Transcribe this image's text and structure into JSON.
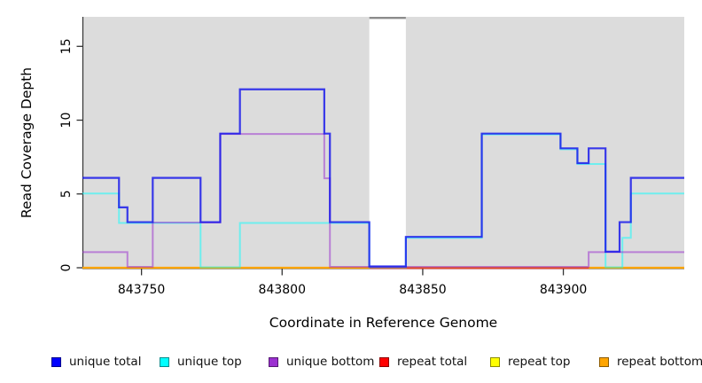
{
  "legend": {
    "items": [
      {
        "label": "unique total",
        "color": "#0000ff"
      },
      {
        "label": "unique top",
        "color": "#00ffff"
      },
      {
        "label": "unique bottom",
        "color": "#9b30d0"
      },
      {
        "label": "repeat total",
        "color": "#ff0000"
      },
      {
        "label": "repeat top",
        "color": "#ffff00"
      },
      {
        "label": "repeat bottom",
        "color": "#ffa500"
      }
    ]
  },
  "chart_data": {
    "type": "line",
    "line_style": "step",
    "title": "",
    "xlabel": "Coordinate in Reference Genome",
    "ylabel": "Read Coverage Depth",
    "xlim": [
      843729,
      843943
    ],
    "ylim": [
      0,
      17
    ],
    "x_ticks": [
      843750,
      843800,
      843850,
      843900
    ],
    "y_ticks": [
      0,
      5,
      10,
      15
    ],
    "panel_bg": "#dcdcdc",
    "axis_color": "#333333",
    "masked_region": {
      "from": 843831,
      "to": 843844,
      "fill": "#ffffff",
      "edge": "#8c8c8c"
    },
    "series": [
      {
        "name": "unique total",
        "legend_color": "#0000ff",
        "stroke": "rgba(20,20,235,0.82)",
        "width": 2.2,
        "dy": -1.5,
        "z": 6,
        "points": [
          [
            843729,
            6
          ],
          [
            843742,
            4
          ],
          [
            843745,
            3
          ],
          [
            843754,
            6
          ],
          [
            843771,
            3
          ],
          [
            843778,
            9
          ],
          [
            843785,
            12
          ],
          [
            843815,
            9
          ],
          [
            843817,
            3
          ],
          [
            843831,
            0
          ],
          [
            843844,
            2
          ],
          [
            843871,
            9
          ],
          [
            843899,
            8
          ],
          [
            843905,
            7
          ],
          [
            843909,
            8
          ],
          [
            843915,
            1
          ],
          [
            843920,
            3
          ],
          [
            843924,
            6
          ],
          [
            843943,
            6
          ]
        ]
      },
      {
        "name": "unique top",
        "legend_color": "#00ffff",
        "stroke": "rgba(0,255,255,0.5)",
        "width": 2,
        "dy": -0.5,
        "z": 4,
        "points": [
          [
            843729,
            5
          ],
          [
            843742,
            3
          ],
          [
            843771,
            0
          ],
          [
            843785,
            3
          ],
          [
            843831,
            0
          ],
          [
            843844,
            2
          ],
          [
            843871,
            9
          ],
          [
            843899,
            8
          ],
          [
            843905,
            7
          ],
          [
            843915,
            0
          ],
          [
            843921,
            2
          ],
          [
            843924,
            5
          ],
          [
            843943,
            5
          ]
        ]
      },
      {
        "name": "unique bottom",
        "legend_color": "#9b30d0",
        "stroke": "rgba(150,35,205,0.5)",
        "width": 2,
        "dy": -1.0,
        "z": 5,
        "points": [
          [
            843729,
            1
          ],
          [
            843745,
            0
          ],
          [
            843754,
            3
          ],
          [
            843778,
            9
          ],
          [
            843815,
            6
          ],
          [
            843817,
            0
          ],
          [
            843909,
            1
          ],
          [
            843943,
            1
          ]
        ]
      },
      {
        "name": "repeat total",
        "legend_color": "#ff0000",
        "stroke": "rgba(220,20,60,0.6)",
        "width": 2,
        "dy": 0.5,
        "z": 3,
        "visible_range": [
          843831,
          843909
        ],
        "points": [
          [
            843729,
            0
          ],
          [
            843943,
            0
          ]
        ]
      },
      {
        "name": "repeat top",
        "legend_color": "#ffff00",
        "stroke": "#ffff00",
        "width": 2,
        "dy": 0,
        "z": 1,
        "points": [
          [
            843729,
            0
          ],
          [
            843943,
            0
          ]
        ]
      },
      {
        "name": "repeat bottom",
        "legend_color": "#ffa500",
        "stroke": "#ffa500",
        "width": 2.2,
        "dy": 0,
        "z": 2,
        "points": [
          [
            843729,
            0
          ],
          [
            843943,
            0
          ]
        ]
      }
    ]
  }
}
